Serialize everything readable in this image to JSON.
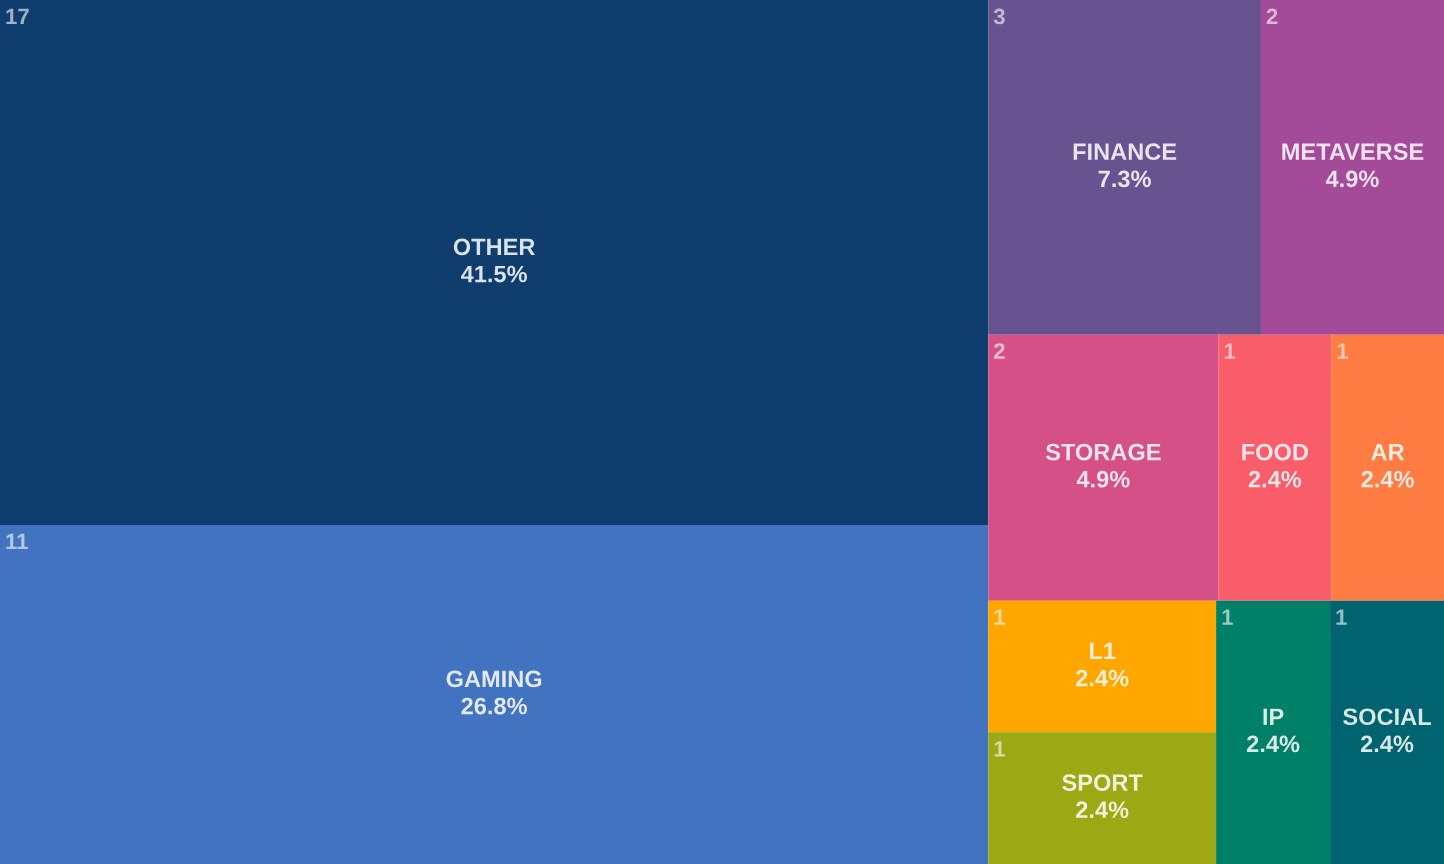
{
  "chart_data": {
    "type": "other",
    "categories": [
      "OTHER",
      "GAMING",
      "FINANCE",
      "METAVERSE",
      "STORAGE",
      "FOOD",
      "AR",
      "L1",
      "SPORT",
      "IP",
      "SOCIAL"
    ],
    "values": [
      41.5,
      26.8,
      7.3,
      4.9,
      4.9,
      2.4,
      2.4,
      2.4,
      2.4,
      2.4,
      2.4
    ],
    "value_labels": [
      "41.5%",
      "26.8%",
      "7.3%",
      "4.9%",
      "4.9%",
      "2.4%",
      "2.4%",
      "2.4%",
      "2.4%",
      "2.4%",
      "2.4%"
    ],
    "annotations": [
      "17",
      "11",
      "3",
      "2",
      "2",
      "1",
      "1",
      "1",
      "1",
      "1",
      "1"
    ],
    "colors": [
      "#0f3e6e",
      "#4273c1",
      "#665390",
      "#a34a98",
      "#d45087",
      "#f95d6a",
      "#ff7c43",
      "#ffa600",
      "#9ca915",
      "#008068",
      "#006370"
    ]
  }
}
